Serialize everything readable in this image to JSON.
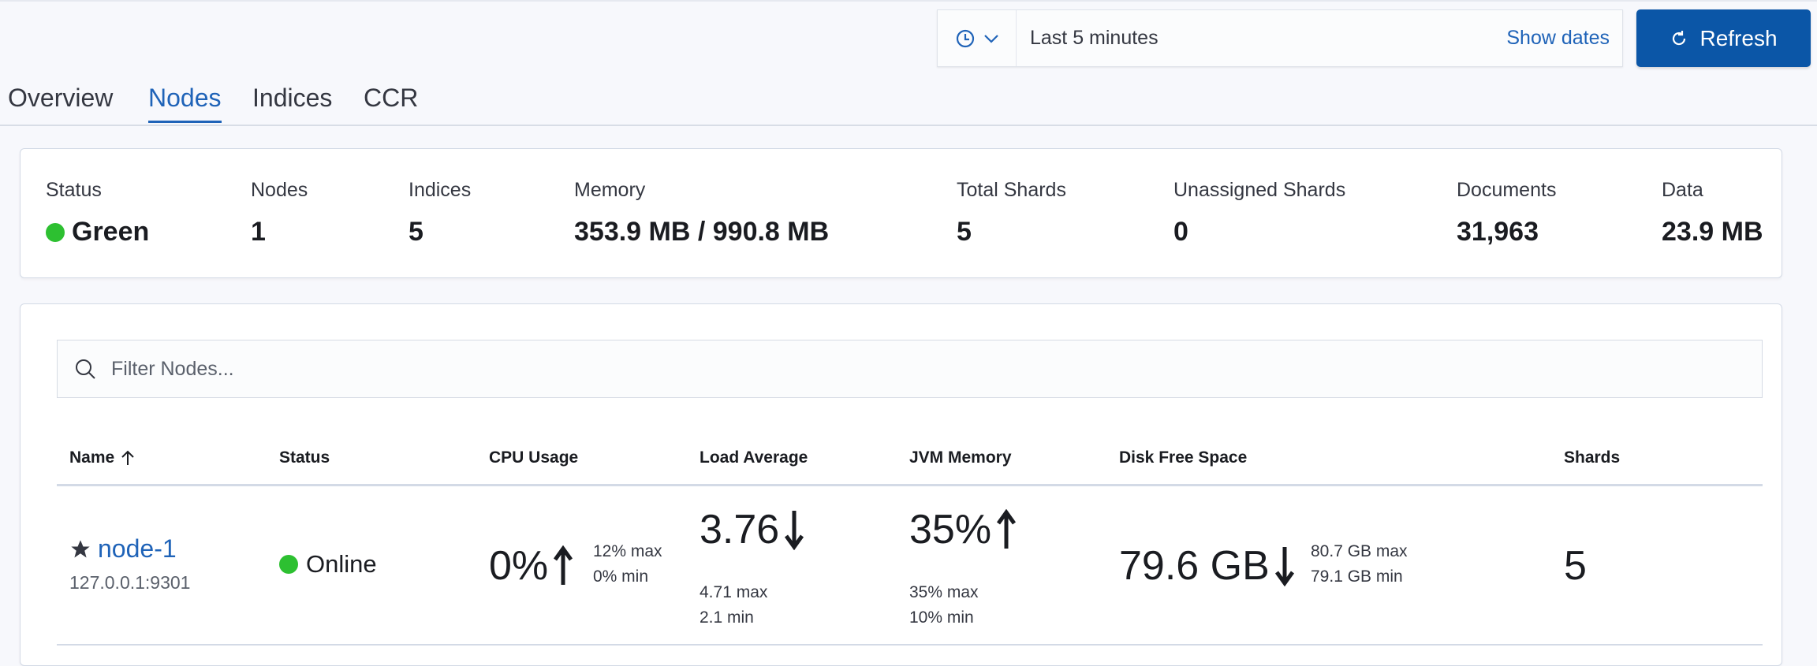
{
  "time_picker": {
    "icon": "clock-icon",
    "range": "Last 5 minutes",
    "show_dates": "Show dates"
  },
  "refresh": {
    "label": "Refresh",
    "icon": "refresh-icon"
  },
  "tabs": [
    {
      "label": "Overview"
    },
    {
      "label": "Nodes",
      "active": true
    },
    {
      "label": "Indices"
    },
    {
      "label": "CCR"
    }
  ],
  "summary": {
    "status": {
      "label": "Status",
      "value": "Green",
      "color": "#2dc031"
    },
    "nodes": {
      "label": "Nodes",
      "value": "1"
    },
    "indices": {
      "label": "Indices",
      "value": "5"
    },
    "memory": {
      "label": "Memory",
      "value": "353.9 MB / 990.8 MB"
    },
    "total_shards": {
      "label": "Total Shards",
      "value": "5"
    },
    "unassigned_shards": {
      "label": "Unassigned Shards",
      "value": "0"
    },
    "documents": {
      "label": "Documents",
      "value": "31,963"
    },
    "data": {
      "label": "Data",
      "value": "23.9 MB"
    }
  },
  "filter": {
    "placeholder": "Filter Nodes..."
  },
  "table": {
    "columns": [
      "Name",
      "Status",
      "CPU Usage",
      "Load Average",
      "JVM Memory",
      "Disk Free Space",
      "Shards"
    ],
    "sort": {
      "column": "Name",
      "direction": "ascending"
    },
    "rows": [
      {
        "name": "node-1",
        "address": "127.0.0.1:9301",
        "master": true,
        "status": "Online",
        "status_color": "#2dc031",
        "cpu": {
          "value": "0%",
          "trend": "up",
          "max": "12% max",
          "min": "0% min"
        },
        "load": {
          "value": "3.76",
          "trend": "down",
          "max": "4.71 max",
          "min": "2.1 min"
        },
        "jvm": {
          "value": "35%",
          "trend": "up",
          "max": "35% max",
          "min": "10% min"
        },
        "disk": {
          "value": "79.6 GB",
          "trend": "down",
          "max": "80.7 GB max",
          "min": "79.1 GB min"
        },
        "shards": "5"
      }
    ]
  }
}
